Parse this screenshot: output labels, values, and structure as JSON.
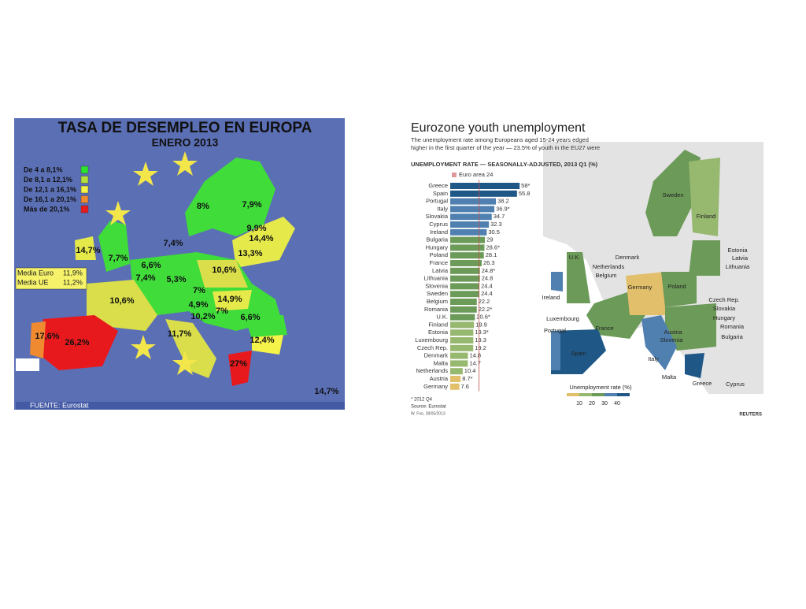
{
  "left_map": {
    "title": "TASA DE DESEMPLEO  EN EUROPA",
    "subtitle": "ENERO 2013",
    "legend": [
      "De 4 a 8,1%",
      "De 8,1 a 12,1%",
      "De 12,1 a 16,1%",
      "De 16,1 a 20,1%",
      "Más de 20,1%"
    ],
    "averages": [
      {
        "label": "Media Euro",
        "value": "11,9%"
      },
      {
        "label": "Media UE",
        "value": "11,2%"
      }
    ],
    "labels": [
      "14,7%",
      "7,7%",
      "8%",
      "7,9%",
      "9,9%",
      "14,4%",
      "7,4%",
      "13,3%",
      "6,6%",
      "10,6%",
      "7,4%",
      "5,3%",
      "7%",
      "10,6%",
      "14,9%",
      "4,9%",
      "7%",
      "10,2%",
      "6,6%",
      "11,7%",
      "12,4%",
      "17,6%",
      "26,2%",
      "27%",
      "14,7%"
    ],
    "source": "FUENTE: Eurostat"
  },
  "chart_data": {
    "type": "bar",
    "title": "Eurozone youth unemployment",
    "subtitle": [
      "The unemployment rate among Europeans aged 15-24 years edged",
      "higher in the first quarter of the year — 23.5% of youth in the EU27 were"
    ],
    "axis_label": "UNEMPLOYMENT RATE — SEASONALLY-ADJUSTED, 2013 Q1 (%)",
    "reference": {
      "label": "Euro area 24",
      "value": 24
    },
    "categories": [
      "Greece",
      "Spain",
      "Portugal",
      "Italy",
      "Slovakia",
      "Cyprus",
      "Ireland",
      "Bulgaria",
      "Hungary",
      "Poland",
      "France",
      "Latvia",
      "Lithuania",
      "Slovenia",
      "Sweden",
      "Belgium",
      "Romania",
      "U.K.",
      "Finland",
      "Estonia",
      "Luxembourg",
      "Czech Rep.",
      "Denmark",
      "Malta",
      "Netherlands",
      "Austria",
      "Germany"
    ],
    "values": [
      58,
      55.8,
      38.2,
      36.9,
      34.7,
      32.3,
      30.5,
      29,
      28.6,
      28.1,
      26.3,
      24.8,
      24.8,
      24.4,
      24.4,
      22.2,
      22.2,
      20.6,
      19.9,
      19.3,
      19.3,
      19.2,
      14.8,
      14.7,
      10.4,
      8.7,
      7.6
    ],
    "value_labels": [
      "58*",
      "55.8",
      "38.2",
      "36.9*",
      "34.7",
      "32.3",
      "30.5",
      "29",
      "28.6*",
      "28.1",
      "26.3",
      "24.8*",
      "24.8",
      "24.4",
      "24.4",
      "22.2",
      "22.2*",
      "20.6*",
      "19.9",
      "19.3*",
      "19.3",
      "19.2",
      "14.8",
      "14.7",
      "10.4",
      "8.7*",
      "7.6"
    ],
    "colors": [
      "#1f5786",
      "#1f5786",
      "#4f80b0",
      "#4f80b0",
      "#4f80b0",
      "#4f80b0",
      "#4f80b0",
      "#6c9a58",
      "#6c9a58",
      "#6c9a58",
      "#6c9a58",
      "#6c9a58",
      "#6c9a58",
      "#6c9a58",
      "#6c9a58",
      "#6c9a58",
      "#6c9a58",
      "#6c9a58",
      "#97b86f",
      "#97b86f",
      "#97b86f",
      "#97b86f",
      "#97b86f",
      "#97b86f",
      "#97b86f",
      "#e2bf6a",
      "#e2bf6a"
    ],
    "notes": [
      "* 2012 Q4",
      "Source: Eurostat"
    ],
    "credit": "W. Foo, 28/05/2013",
    "brand": "REUTERS"
  },
  "right_map": {
    "countries": [
      "Sweden",
      "Finland",
      "Estonia",
      "Latvia",
      "Lithuania",
      "U.K.",
      "Denmark",
      "Netherlands",
      "Belgium",
      "Germany",
      "Poland",
      "Ireland",
      "Czech Rep.",
      "Slovakia",
      "Hungary",
      "Romania",
      "Bulgaria",
      "Luxembourg",
      "France",
      "Austria",
      "Slovenia",
      "Portugal",
      "Spain",
      "Italy",
      "Malta",
      "Greece",
      "Cyprus"
    ],
    "legend_title": "Unemployment rate (%)",
    "legend_ticks": [
      10,
      20,
      30,
      40
    ]
  }
}
